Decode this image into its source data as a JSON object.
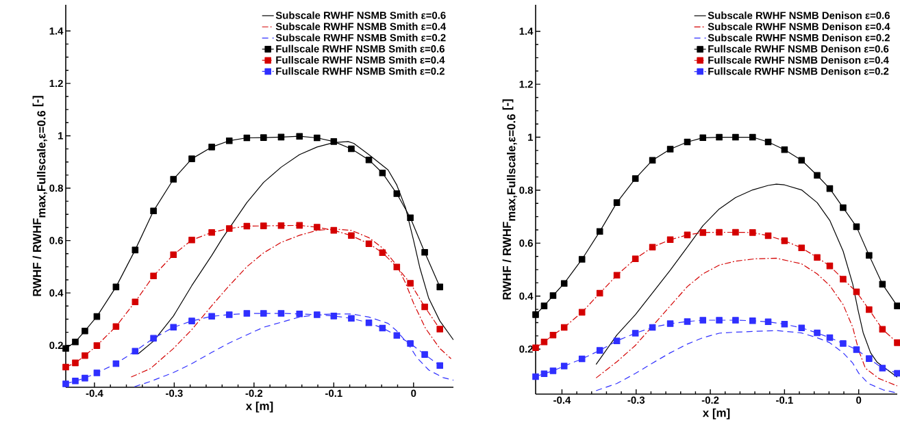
{
  "chart_data": [
    {
      "type": "line",
      "xlabel": "x [m]",
      "ylabel": "\\textbf{RWHF / RWHF}_{\\textbf{max,Fullscale,ε=0.6}}\\ \\textbf{[-]}",
      "xlim": [
        -0.436,
        0.05
      ],
      "ylim": [
        0.04,
        1.5
      ],
      "xticks": [
        -0.4,
        -0.3,
        -0.2,
        -0.1,
        0
      ],
      "yticks": [
        0.2,
        0.4,
        0.6,
        0.8,
        1,
        1.2,
        1.4
      ],
      "legend": "top right",
      "grid": false,
      "series": [
        {
          "name": "Subscale RWHF NSMB Smith ε=0.6",
          "color": "#000000",
          "line_style": "solid",
          "marker": "none",
          "x": [
            -0.345,
            -0.326,
            -0.301,
            -0.278,
            -0.253,
            -0.24,
            -0.209,
            -0.188,
            -0.166,
            -0.143,
            -0.121,
            -0.1,
            -0.082,
            -0.075,
            -0.056,
            -0.032,
            -0.021,
            -0.01,
            0.0,
            0.008,
            0.019,
            0.033,
            0.05
          ],
          "values": [
            0.168,
            0.216,
            0.312,
            0.428,
            0.543,
            0.607,
            0.745,
            0.822,
            0.88,
            0.928,
            0.957,
            0.974,
            0.978,
            0.971,
            0.928,
            0.87,
            0.812,
            0.725,
            0.601,
            0.495,
            0.38,
            0.293,
            0.221
          ]
        },
        {
          "name": "Subscale RWHF NSMB Smith ε=0.4",
          "color": "#d40000",
          "line_style": "dashdot",
          "marker": "none",
          "x": [
            -0.354,
            -0.33,
            -0.301,
            -0.278,
            -0.253,
            -0.231,
            -0.209,
            -0.188,
            -0.166,
            -0.143,
            -0.121,
            -0.1,
            -0.078,
            -0.056,
            -0.039,
            -0.021,
            -0.01,
            0.0,
            0.015,
            0.033,
            0.047
          ],
          "values": [
            0.079,
            0.111,
            0.188,
            0.26,
            0.351,
            0.428,
            0.5,
            0.553,
            0.593,
            0.62,
            0.639,
            0.644,
            0.639,
            0.611,
            0.572,
            0.505,
            0.438,
            0.361,
            0.265,
            0.188,
            0.149
          ]
        },
        {
          "name": "Subscale RWHF NSMB Smith ε=0.2",
          "color": "#2f2fff",
          "line_style": "dashed",
          "marker": "none",
          "x": [
            -0.35,
            -0.33,
            -0.301,
            -0.278,
            -0.253,
            -0.231,
            -0.209,
            -0.188,
            -0.166,
            -0.143,
            -0.121,
            -0.1,
            -0.078,
            -0.056,
            -0.032,
            -0.021,
            -0.006,
            0.004,
            0.019,
            0.037,
            0.05
          ],
          "values": [
            0.042,
            0.062,
            0.096,
            0.13,
            0.173,
            0.209,
            0.24,
            0.269,
            0.288,
            0.308,
            0.317,
            0.32,
            0.32,
            0.308,
            0.284,
            0.255,
            0.202,
            0.154,
            0.106,
            0.077,
            0.067
          ]
        },
        {
          "name": "Fullscale RWHF NSMB Smith ε=0.6",
          "color": "#000000",
          "line_style": "solid",
          "marker": "square",
          "x": [
            -0.436,
            -0.424,
            -0.412,
            -0.397,
            -0.373,
            -0.349,
            -0.326,
            -0.301,
            -0.278,
            -0.253,
            -0.231,
            -0.209,
            -0.188,
            -0.166,
            -0.143,
            -0.121,
            -0.1,
            -0.078,
            -0.056,
            -0.039,
            -0.021,
            -0.004,
            0.014,
            0.033
          ],
          "values": [
            0.188,
            0.213,
            0.255,
            0.31,
            0.423,
            0.564,
            0.713,
            0.834,
            0.912,
            0.957,
            0.981,
            0.992,
            0.993,
            0.995,
            0.998,
            0.992,
            0.978,
            0.95,
            0.908,
            0.858,
            0.779,
            0.687,
            0.555,
            0.423
          ]
        },
        {
          "name": "Fullscale RWHF NSMB Smith ε=0.4",
          "color": "#d40000",
          "line_style": "dashdot",
          "marker": "square",
          "x": [
            -0.436,
            -0.424,
            -0.412,
            -0.397,
            -0.373,
            -0.349,
            -0.326,
            -0.301,
            -0.278,
            -0.253,
            -0.231,
            -0.209,
            -0.188,
            -0.166,
            -0.143,
            -0.121,
            -0.1,
            -0.078,
            -0.056,
            -0.039,
            -0.021,
            -0.004,
            0.014,
            0.033
          ],
          "values": [
            0.117,
            0.133,
            0.161,
            0.199,
            0.272,
            0.366,
            0.465,
            0.546,
            0.602,
            0.631,
            0.646,
            0.655,
            0.656,
            0.657,
            0.658,
            0.651,
            0.639,
            0.619,
            0.588,
            0.554,
            0.499,
            0.437,
            0.347,
            0.262
          ]
        },
        {
          "name": "Fullscale RWHF NSMB Smith ε=0.2",
          "color": "#2f2fff",
          "line_style": "dashed",
          "marker": "square",
          "x": [
            -0.436,
            -0.424,
            -0.412,
            -0.397,
            -0.373,
            -0.349,
            -0.326,
            -0.301,
            -0.278,
            -0.253,
            -0.231,
            -0.209,
            -0.188,
            -0.166,
            -0.143,
            -0.121,
            -0.1,
            -0.078,
            -0.056,
            -0.039,
            -0.021,
            -0.004,
            0.014,
            0.033
          ],
          "values": [
            0.053,
            0.064,
            0.075,
            0.095,
            0.13,
            0.178,
            0.227,
            0.269,
            0.293,
            0.311,
            0.317,
            0.322,
            0.322,
            0.322,
            0.32,
            0.317,
            0.312,
            0.303,
            0.286,
            0.266,
            0.238,
            0.207,
            0.165,
            0.123
          ]
        }
      ]
    },
    {
      "type": "line",
      "xlabel": "x [m]",
      "ylabel": "\\textbf{RWHF / RWHF}_{\\textbf{max,Fullscale,ε=0.6}}\\ \\textbf{[-]}",
      "xlim": [
        -0.4355,
        0.052
      ],
      "ylim": [
        0.03,
        1.5
      ],
      "xticks": [
        -0.4,
        -0.3,
        -0.2,
        -0.1,
        0
      ],
      "yticks": [
        0.2,
        0.4,
        0.6,
        0.8,
        1,
        1.2,
        1.4
      ],
      "legend": "top right",
      "grid": false,
      "series": [
        {
          "name": "Subscale RWHF NSMB Denison ε=0.6",
          "color": "#000000",
          "line_style": "solid",
          "marker": "none",
          "x": [
            -0.354,
            -0.326,
            -0.301,
            -0.278,
            -0.254,
            -0.231,
            -0.21,
            -0.188,
            -0.166,
            -0.143,
            -0.122,
            -0.111,
            -0.1,
            -0.077,
            -0.056,
            -0.039,
            -0.021,
            -0.008,
            -0.001,
            0.006,
            0.016,
            0.025,
            0.052
          ],
          "values": [
            0.142,
            0.253,
            0.33,
            0.412,
            0.498,
            0.585,
            0.666,
            0.729,
            0.772,
            0.801,
            0.818,
            0.823,
            0.82,
            0.801,
            0.753,
            0.686,
            0.57,
            0.445,
            0.349,
            0.262,
            0.186,
            0.15,
            0.094
          ]
        },
        {
          "name": "Subscale RWHF NSMB Denison ε=0.4",
          "color": "#d40000",
          "line_style": "dashdot",
          "marker": "none",
          "x": [
            -0.354,
            -0.326,
            -0.301,
            -0.278,
            -0.254,
            -0.231,
            -0.21,
            -0.188,
            -0.166,
            -0.139,
            -0.111,
            -0.077,
            -0.056,
            -0.039,
            -0.021,
            -0.008,
            0.0,
            0.009,
            0.027,
            0.052
          ],
          "values": [
            0.091,
            0.152,
            0.214,
            0.287,
            0.363,
            0.436,
            0.484,
            0.517,
            0.532,
            0.541,
            0.543,
            0.522,
            0.484,
            0.44,
            0.368,
            0.282,
            0.195,
            0.128,
            0.089,
            0.061
          ]
        },
        {
          "name": "Subscale RWHF NSMB Denison ε=0.2",
          "color": "#2f2fff",
          "line_style": "dashed",
          "marker": "none",
          "x": [
            -0.354,
            -0.326,
            -0.301,
            -0.278,
            -0.254,
            -0.231,
            -0.21,
            -0.188,
            -0.166,
            -0.139,
            -0.111,
            -0.077,
            -0.056,
            -0.039,
            -0.021,
            -0.008,
            0.0,
            0.013,
            0.033,
            0.052
          ],
          "values": [
            0.043,
            0.07,
            0.108,
            0.147,
            0.186,
            0.219,
            0.243,
            0.26,
            0.264,
            0.267,
            0.27,
            0.261,
            0.243,
            0.224,
            0.186,
            0.147,
            0.109,
            0.07,
            0.046,
            0.034
          ]
        },
        {
          "name": "Fullscale RWHF NSMB Denison ε=0.6",
          "color": "#000000",
          "line_style": "solid",
          "marker": "square",
          "x": [
            -0.4355,
            -0.424,
            -0.412,
            -0.397,
            -0.373,
            -0.349,
            -0.326,
            -0.301,
            -0.278,
            -0.254,
            -0.231,
            -0.21,
            -0.188,
            -0.166,
            -0.143,
            -0.122,
            -0.1,
            -0.077,
            -0.056,
            -0.039,
            -0.021,
            -0.003,
            0.014,
            0.032,
            0.052
          ],
          "values": [
            0.33,
            0.363,
            0.402,
            0.448,
            0.539,
            0.644,
            0.753,
            0.844,
            0.913,
            0.955,
            0.982,
            0.998,
            1.0,
            1.0,
            1.0,
            0.982,
            0.953,
            0.913,
            0.856,
            0.806,
            0.734,
            0.662,
            0.554,
            0.445,
            0.363
          ]
        },
        {
          "name": "Fullscale RWHF NSMB Denison ε=0.4",
          "color": "#d40000",
          "line_style": "dashdot",
          "marker": "square",
          "x": [
            -0.4355,
            -0.424,
            -0.412,
            -0.397,
            -0.373,
            -0.349,
            -0.326,
            -0.301,
            -0.278,
            -0.254,
            -0.231,
            -0.21,
            -0.188,
            -0.166,
            -0.143,
            -0.122,
            -0.1,
            -0.077,
            -0.056,
            -0.039,
            -0.021,
            -0.003,
            0.014,
            0.032,
            0.052
          ],
          "values": [
            0.205,
            0.227,
            0.253,
            0.282,
            0.339,
            0.411,
            0.479,
            0.541,
            0.585,
            0.613,
            0.631,
            0.64,
            0.641,
            0.641,
            0.64,
            0.628,
            0.609,
            0.582,
            0.546,
            0.514,
            0.464,
            0.416,
            0.349,
            0.275,
            0.224
          ]
        },
        {
          "name": "Fullscale RWHF NSMB Denison ε=0.2",
          "color": "#2f2fff",
          "line_style": "dashed",
          "marker": "square",
          "x": [
            -0.4355,
            -0.424,
            -0.412,
            -0.397,
            -0.373,
            -0.349,
            -0.326,
            -0.301,
            -0.278,
            -0.254,
            -0.231,
            -0.21,
            -0.188,
            -0.166,
            -0.143,
            -0.122,
            -0.1,
            -0.077,
            -0.056,
            -0.039,
            -0.021,
            -0.003,
            0.014,
            0.032,
            0.052
          ],
          "values": [
            0.096,
            0.107,
            0.118,
            0.136,
            0.163,
            0.195,
            0.231,
            0.26,
            0.282,
            0.296,
            0.304,
            0.309,
            0.309,
            0.309,
            0.307,
            0.303,
            0.294,
            0.28,
            0.261,
            0.243,
            0.221,
            0.198,
            0.164,
            0.128,
            0.109
          ]
        }
      ]
    }
  ]
}
